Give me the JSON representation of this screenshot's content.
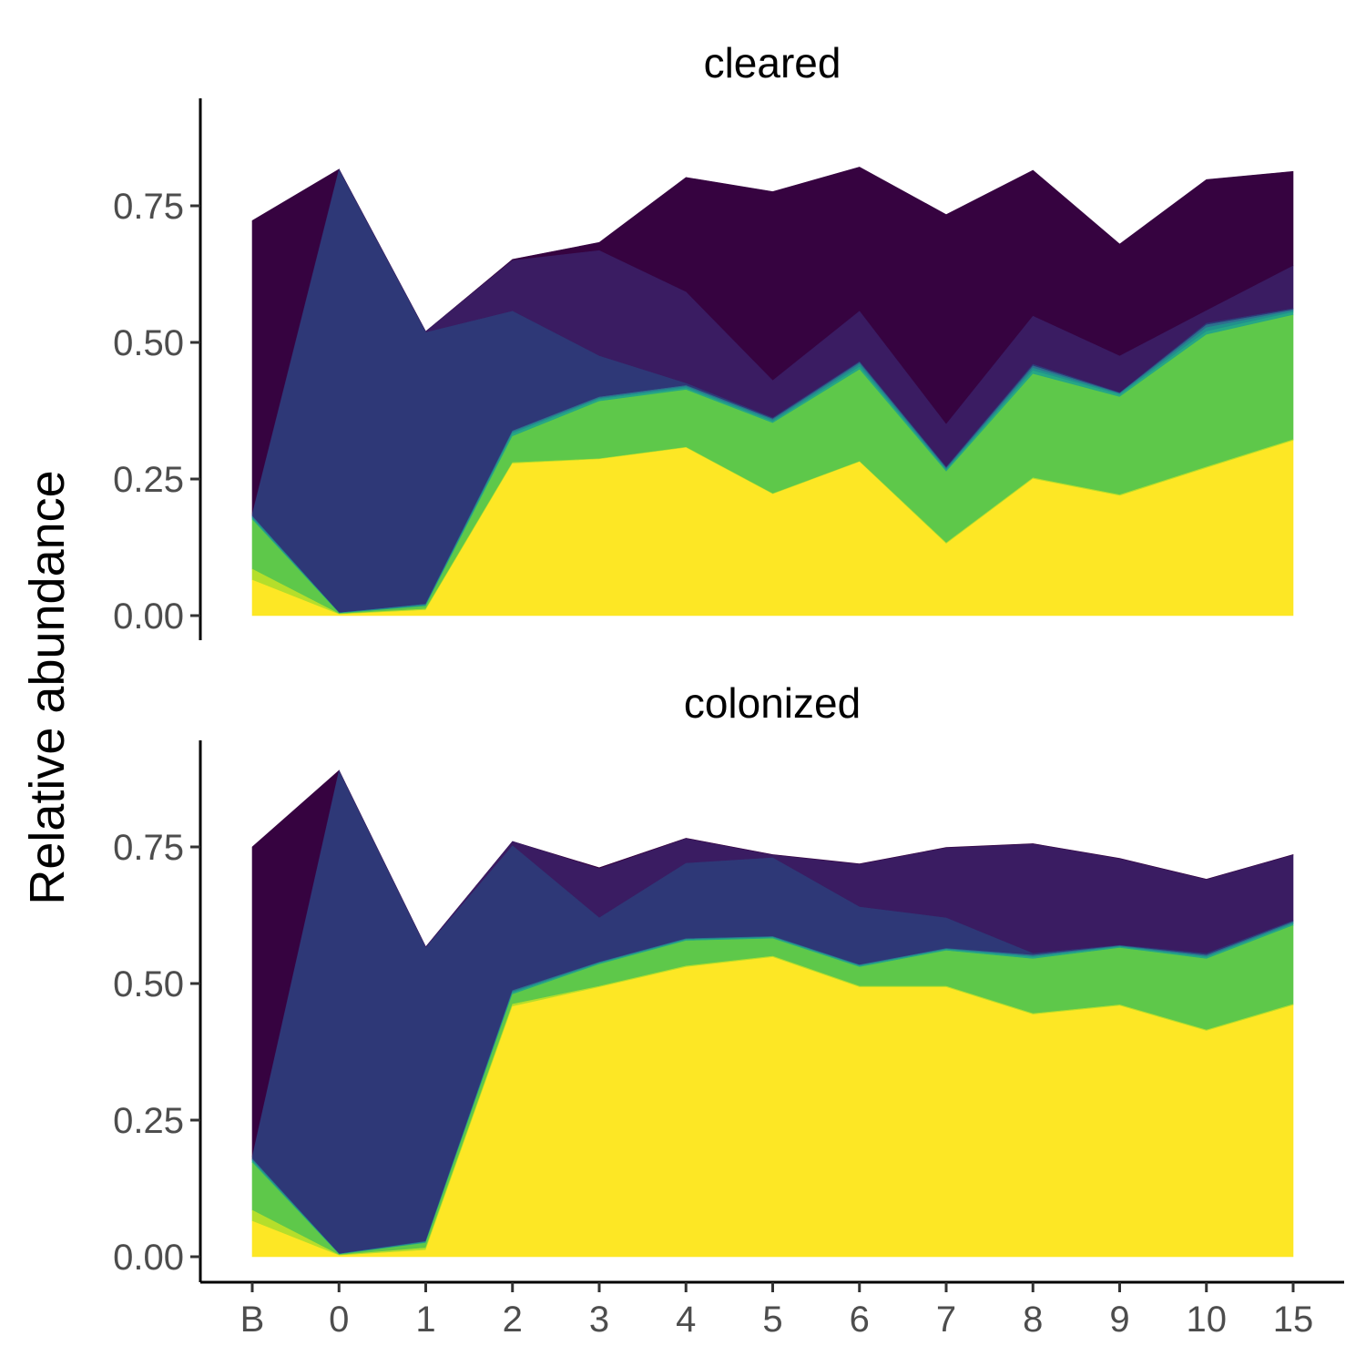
{
  "chart_data": {
    "type": "area",
    "ylabel": "Relative abundance",
    "xlabel": "",
    "categories": [
      "B",
      "0",
      "1",
      "2",
      "3",
      "4",
      "5",
      "6",
      "7",
      "8",
      "9",
      "10",
      "15"
    ],
    "ylim": [
      0,
      0.9
    ],
    "yticks": [
      "0.00",
      "0.25",
      "0.50",
      "0.75"
    ],
    "grid": false,
    "legend": "none",
    "colors": [
      "#fde725",
      "#b5de2b",
      "#5ec84a",
      "#26a784",
      "#21918c",
      "#2d6e8e",
      "#2e3877",
      "#3a1c62",
      "#360340"
    ],
    "panels": [
      {
        "title": "cleared",
        "stacked_cumulative": true,
        "series": [
          {
            "color": "#fde725",
            "values": [
              0.065,
              0.002,
              0.01,
              0.278,
              0.286,
              0.307,
              0.222,
              0.281,
              0.131,
              0.25,
              0.219,
              0.27,
              0.32
            ]
          },
          {
            "color": "#b5de2b",
            "values": [
              0.085,
              0.003,
              0.012,
              0.28,
              0.287,
              0.308,
              0.223,
              0.282,
              0.133,
              0.252,
              0.221,
              0.272,
              0.322
            ]
          },
          {
            "color": "#5ec84a",
            "values": [
              0.175,
              0.004,
              0.017,
              0.328,
              0.392,
              0.413,
              0.352,
              0.45,
              0.263,
              0.442,
              0.4,
              0.514,
              0.55
            ]
          },
          {
            "color": "#26a784",
            "values": [
              0.178,
              0.004,
              0.018,
              0.333,
              0.396,
              0.416,
              0.355,
              0.455,
              0.266,
              0.448,
              0.404,
              0.52,
              0.555
            ]
          },
          {
            "color": "#21918c",
            "values": [
              0.18,
              0.005,
              0.02,
              0.336,
              0.398,
              0.419,
              0.358,
              0.46,
              0.268,
              0.453,
              0.406,
              0.527,
              0.558
            ]
          },
          {
            "color": "#2d6e8e",
            "values": [
              0.182,
              0.005,
              0.021,
              0.338,
              0.4,
              0.421,
              0.36,
              0.463,
              0.27,
              0.457,
              0.407,
              0.532,
              0.56
            ]
          },
          {
            "color": "#2e3877",
            "values": [
              0.184,
              0.815,
              0.518,
              0.557,
              0.475,
              0.425,
              0.362,
              0.465,
              0.272,
              0.46,
              0.408,
              0.535,
              0.562
            ]
          },
          {
            "color": "#3a1c62",
            "values": [
              0.186,
              0.817,
              0.52,
              0.65,
              0.668,
              0.592,
              0.43,
              0.557,
              0.35,
              0.548,
              0.475,
              0.558,
              0.64
            ]
          },
          {
            "color": "#360340",
            "values": [
              0.723,
              0.817,
              0.52,
              0.652,
              0.683,
              0.802,
              0.776,
              0.821,
              0.734,
              0.815,
              0.68,
              0.798,
              0.813
            ]
          }
        ]
      },
      {
        "title": "colonized",
        "stacked_cumulative": true,
        "series": [
          {
            "color": "#fde725",
            "values": [
              0.065,
              0.002,
              0.012,
              0.458,
              0.493,
              0.53,
              0.548,
              0.493,
              0.493,
              0.443,
              0.459,
              0.413,
              0.46
            ]
          },
          {
            "color": "#b5de2b",
            "values": [
              0.085,
              0.003,
              0.016,
              0.462,
              0.495,
              0.532,
              0.55,
              0.495,
              0.495,
              0.445,
              0.461,
              0.415,
              0.462
            ]
          },
          {
            "color": "#5ec84a",
            "values": [
              0.172,
              0.004,
              0.025,
              0.48,
              0.535,
              0.578,
              0.582,
              0.53,
              0.56,
              0.545,
              0.565,
              0.545,
              0.606
            ]
          },
          {
            "color": "#26a784",
            "values": [
              0.175,
              0.004,
              0.026,
              0.483,
              0.537,
              0.58,
              0.584,
              0.532,
              0.562,
              0.548,
              0.567,
              0.548,
              0.609
            ]
          },
          {
            "color": "#21918c",
            "values": [
              0.177,
              0.005,
              0.027,
              0.485,
              0.538,
              0.581,
              0.585,
              0.533,
              0.563,
              0.55,
              0.568,
              0.55,
              0.611
            ]
          },
          {
            "color": "#2d6e8e",
            "values": [
              0.179,
              0.005,
              0.028,
              0.487,
              0.539,
              0.582,
              0.586,
              0.534,
              0.564,
              0.552,
              0.569,
              0.552,
              0.613
            ]
          },
          {
            "color": "#2e3877",
            "values": [
              0.181,
              0.888,
              0.565,
              0.752,
              0.62,
              0.72,
              0.73,
              0.64,
              0.62,
              0.555,
              0.57,
              0.555,
              0.615
            ]
          },
          {
            "color": "#3a1c62",
            "values": [
              0.183,
              0.89,
              0.567,
              0.76,
              0.71,
              0.765,
              0.735,
              0.718,
              0.748,
              0.755,
              0.728,
              0.69,
              0.735
            ]
          },
          {
            "color": "#360340",
            "values": [
              0.75,
              0.89,
              0.567,
              0.76,
              0.712,
              0.766,
              0.736,
              0.719,
              0.749,
              0.756,
              0.729,
              0.691,
              0.736
            ]
          }
        ]
      }
    ]
  }
}
